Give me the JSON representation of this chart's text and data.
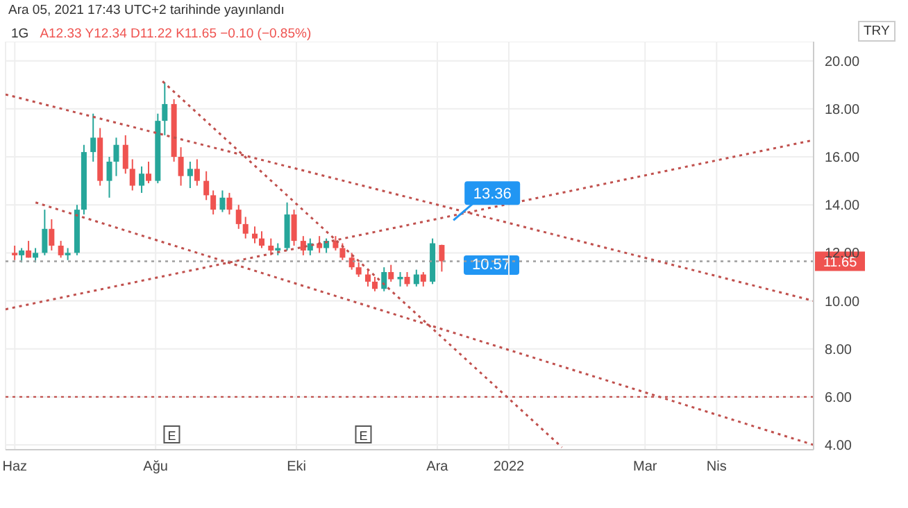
{
  "chart_data": {
    "type": "candlestick",
    "title": "1G",
    "subtitle": "A12.33 Y12.34 D11.22 K11.65 −0.10 (−0.85%)",
    "ylabel": "TRY",
    "x": [
      "2021-06-01",
      "2021-06-04",
      "2021-06-07",
      "2021-06-10",
      "2021-06-14",
      "2021-06-17",
      "2021-06-21",
      "2021-06-24",
      "2021-06-28",
      "2021-07-01",
      "2021-07-05",
      "2021-07-08",
      "2021-07-12",
      "2021-07-15",
      "2021-07-19",
      "2021-07-22",
      "2021-07-26",
      "2021-07-29",
      "2021-08-02",
      "2021-08-05",
      "2021-08-09",
      "2021-08-12",
      "2021-08-16",
      "2021-08-19",
      "2021-08-23",
      "2021-08-26",
      "2021-08-30",
      "2021-09-02",
      "2021-09-06",
      "2021-09-09",
      "2021-09-13",
      "2021-09-16",
      "2021-09-20",
      "2021-09-23",
      "2021-09-27",
      "2021-09-30",
      "2021-10-04",
      "2021-10-07",
      "2021-10-11",
      "2021-10-14",
      "2021-10-18",
      "2021-10-21",
      "2021-10-25",
      "2021-10-28",
      "2021-11-01",
      "2021-11-04",
      "2021-11-08",
      "2021-11-11",
      "2021-11-15",
      "2021-11-18",
      "2021-11-22",
      "2021-11-25",
      "2021-11-29",
      "2021-12-03"
    ],
    "ohlc": [
      [
        12.0,
        12.3,
        11.7,
        11.9
      ],
      [
        11.9,
        12.2,
        11.6,
        12.1
      ],
      [
        12.1,
        12.5,
        11.8,
        11.8
      ],
      [
        11.8,
        12.2,
        11.6,
        12.0
      ],
      [
        12.0,
        13.8,
        11.9,
        13.0
      ],
      [
        13.0,
        13.4,
        12.1,
        12.3
      ],
      [
        12.3,
        12.5,
        11.8,
        11.9
      ],
      [
        11.9,
        12.2,
        11.7,
        12.0
      ],
      [
        12.0,
        14.0,
        11.9,
        13.8
      ],
      [
        13.8,
        16.5,
        13.6,
        16.2
      ],
      [
        16.2,
        17.8,
        15.8,
        16.8
      ],
      [
        16.8,
        17.2,
        14.8,
        15.0
      ],
      [
        15.0,
        16.0,
        14.3,
        15.8
      ],
      [
        15.8,
        16.8,
        15.2,
        16.5
      ],
      [
        16.5,
        16.9,
        15.3,
        15.5
      ],
      [
        15.5,
        15.9,
        14.6,
        14.8
      ],
      [
        14.8,
        15.6,
        14.5,
        15.3
      ],
      [
        15.3,
        15.8,
        14.9,
        15.0
      ],
      [
        15.0,
        17.8,
        14.9,
        17.5
      ],
      [
        17.5,
        19.1,
        16.9,
        18.2
      ],
      [
        18.2,
        18.4,
        15.8,
        16.0
      ],
      [
        16.0,
        16.4,
        14.8,
        15.2
      ],
      [
        15.2,
        15.8,
        14.7,
        15.5
      ],
      [
        15.5,
        15.9,
        14.8,
        15.0
      ],
      [
        15.0,
        15.4,
        14.2,
        14.4
      ],
      [
        14.4,
        14.6,
        13.6,
        13.8
      ],
      [
        13.8,
        14.6,
        13.7,
        14.3
      ],
      [
        14.3,
        14.5,
        13.6,
        13.8
      ],
      [
        13.8,
        14.0,
        13.0,
        13.2
      ],
      [
        13.2,
        13.5,
        12.6,
        12.8
      ],
      [
        12.8,
        13.1,
        12.4,
        12.6
      ],
      [
        12.6,
        12.9,
        12.2,
        12.3
      ],
      [
        12.3,
        12.6,
        11.9,
        12.1
      ],
      [
        12.1,
        12.4,
        11.9,
        12.2
      ],
      [
        12.2,
        14.1,
        12.1,
        13.6
      ],
      [
        13.6,
        13.8,
        12.3,
        12.5
      ],
      [
        12.5,
        12.7,
        11.9,
        12.1
      ],
      [
        12.1,
        12.6,
        11.9,
        12.4
      ],
      [
        12.4,
        12.7,
        12.0,
        12.2
      ],
      [
        12.2,
        12.6,
        12.0,
        12.5
      ],
      [
        12.5,
        12.7,
        12.1,
        12.2
      ],
      [
        12.2,
        12.4,
        11.7,
        11.8
      ],
      [
        11.8,
        12.0,
        11.3,
        11.4
      ],
      [
        11.4,
        11.6,
        11.0,
        11.1
      ],
      [
        11.1,
        11.3,
        10.6,
        10.8
      ],
      [
        10.8,
        11.0,
        10.4,
        10.5
      ],
      [
        10.5,
        11.4,
        10.4,
        11.2
      ],
      [
        11.2,
        11.5,
        10.8,
        10.9
      ],
      [
        10.9,
        11.2,
        10.6,
        11.0
      ],
      [
        11.0,
        11.2,
        10.6,
        10.7
      ],
      [
        10.7,
        11.3,
        10.6,
        11.1
      ],
      [
        11.1,
        11.2,
        10.6,
        10.8
      ],
      [
        10.8,
        12.6,
        10.7,
        12.4
      ],
      [
        12.33,
        12.34,
        11.22,
        11.65
      ]
    ],
    "colors": [
      "#ef5350",
      "#26a69a",
      "#ef5350",
      "#26a69a",
      "#26a69a",
      "#ef5350",
      "#ef5350",
      "#26a69a",
      "#26a69a",
      "#26a69a",
      "#26a69a",
      "#ef5350",
      "#26a69a",
      "#26a69a",
      "#ef5350",
      "#ef5350",
      "#26a69a",
      "#ef5350",
      "#26a69a",
      "#26a69a",
      "#ef5350",
      "#ef5350",
      "#26a69a",
      "#ef5350",
      "#ef5350",
      "#ef5350",
      "#26a69a",
      "#ef5350",
      "#ef5350",
      "#ef5350",
      "#ef5350",
      "#ef5350",
      "#ef5350",
      "#26a69a",
      "#26a69a",
      "#ef5350",
      "#ef5350",
      "#26a69a",
      "#ef5350",
      "#26a69a",
      "#ef5350",
      "#ef5350",
      "#ef5350",
      "#ef5350",
      "#ef5350",
      "#ef5350",
      "#26a69a",
      "#ef5350",
      "#26a69a",
      "#ef5350",
      "#26a69a",
      "#ef5350",
      "#26a69a",
      "#ef5350"
    ],
    "series": [
      {
        "type": "line",
        "color": "#c0504d",
        "line_style": "dotted",
        "marker": "none",
        "x": [
          "2021-05-28",
          "2022-05-13"
        ],
        "values": [
          18.6,
          10.0
        ]
      },
      {
        "type": "line",
        "color": "#c0504d",
        "line_style": "dotted",
        "marker": "none",
        "x": [
          "2021-06-10",
          "2022-05-13"
        ],
        "values": [
          14.1,
          4.0
        ]
      },
      {
        "type": "line",
        "color": "#c0504d",
        "line_style": "dotted",
        "marker": "none",
        "x": [
          "2021-08-04",
          "2022-01-24"
        ],
        "values": [
          19.15,
          3.9
        ]
      },
      {
        "type": "line",
        "color": "#c0504d",
        "line_style": "dotted",
        "marker": "none",
        "x": [
          "2021-05-28",
          "2022-05-13"
        ],
        "values": [
          9.65,
          16.7
        ]
      }
    ],
    "ref_lines": [
      {
        "axis": "y",
        "value": 6.0,
        "color": "#c0504d",
        "line_style": "dotted"
      },
      {
        "axis": "y",
        "value": 11.65,
        "label": "11.65",
        "color": "#9e9e9e",
        "line_style": "dotted"
      }
    ],
    "annotations": [
      "Ara 05, 2021 17:43 UTC+2 tarihinde yayınlandı",
      {
        "text": "13.36",
        "x": "2021-12-08",
        "y": 13.36
      },
      "10.57",
      {
        "text": "E",
        "x": "2021-08-08"
      },
      {
        "text": "E",
        "x": "2021-10-30"
      }
    ],
    "xlim": [
      "2021-05-28",
      "2022-05-13"
    ],
    "xticks": [
      {
        "value": "2021-06-01",
        "label": "Haz"
      },
      {
        "value": "2021-08-01",
        "label": "Ağu"
      },
      {
        "value": "2021-10-01",
        "label": "Eki"
      },
      {
        "value": "2021-12-01",
        "label": "Ara"
      },
      {
        "value": "2022-01-01",
        "label": "2022"
      },
      {
        "value": "2022-03-01",
        "label": "Mar"
      },
      {
        "value": "2022-04-01",
        "label": "Nis"
      }
    ],
    "ylim": [
      3.8,
      20.8
    ],
    "yticks": [
      {
        "value": 4,
        "label": "4.00"
      },
      {
        "value": 6,
        "label": "6.00"
      },
      {
        "value": 8,
        "label": "8.00"
      },
      {
        "value": 10,
        "label": "10.00"
      },
      {
        "value": 12,
        "label": "12.00"
      },
      {
        "value": 14,
        "label": "14.00"
      },
      {
        "value": 16,
        "label": "16.00"
      },
      {
        "value": 18,
        "label": "18.00"
      },
      {
        "value": 20,
        "label": "20.00"
      }
    ],
    "grid": true,
    "legend": false
  }
}
